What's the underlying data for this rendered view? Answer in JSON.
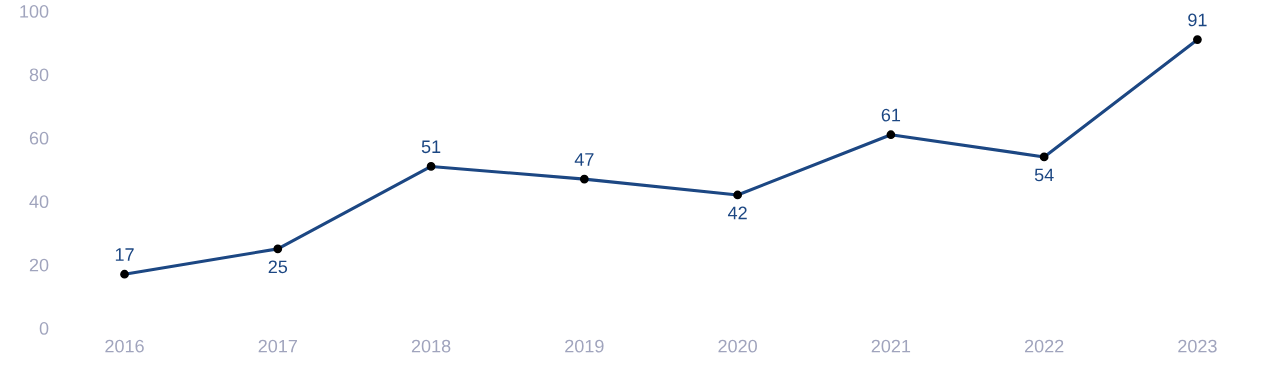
{
  "chart_data": {
    "type": "line",
    "categories": [
      "2016",
      "2017",
      "2018",
      "2019",
      "2020",
      "2021",
      "2022",
      "2023"
    ],
    "series": [
      {
        "color": "#1c4783",
        "values": [
          17,
          25,
          51,
          47,
          42,
          61,
          54,
          91
        ]
      }
    ],
    "ylim": [
      0,
      100
    ],
    "yticks": [
      0,
      20,
      40,
      60,
      80,
      100
    ],
    "grid": false,
    "legend": false,
    "marker": "circle",
    "line_style": "solid",
    "data_labels": true
  }
}
